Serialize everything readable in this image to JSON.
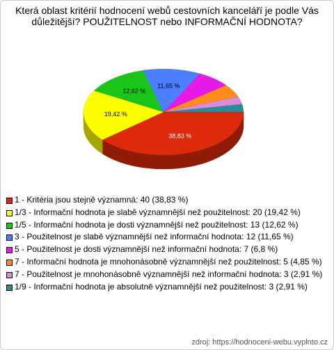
{
  "chart_data": {
    "type": "pie",
    "title": "Která oblast kritérií hodnocení webů cestovních kanceláří je podle Vás důležitější? POUŽITELNOST nebo INFORMAČNÍ HODNOTA?",
    "categories": [
      "1 - Kritéria jsou stejně významná: 40 (38,83 %)",
      "1/3 - Informační hodnota je slabě významnější než použitelnost: 20 (19,42 %)",
      "1/5 - Informační hodnota je dosti významnější než použitelnost: 13 (12,62 %)",
      "3 - Použitelnost je slabě významnější než informační hodnota: 12 (11,65 %)",
      "5 - Použitelnost je dosti významnější než informační hodnota: 7 (6,8 %)",
      "7 - Informační hodnota je mnohonásobně významnější než použitelnost: 5 (4,85 %)",
      "7 - Použitelnost je mnohonásobně významnější než informační hodnota: 3 (2,91 %)",
      "1/9 - Informační hodnota je absolutně významnější než použitelnost: 3 (2,91 %)"
    ],
    "values": [
      38.83,
      19.42,
      12.62,
      11.65,
      6.8,
      4.85,
      2.91,
      2.91
    ],
    "value_labels": [
      "38,83 %",
      "19,42 %",
      "12,62 %",
      "11,65 %",
      null,
      null,
      null,
      null
    ],
    "colors": [
      "#dd2a0a",
      "#ffff00",
      "#19c519",
      "#4c7fff",
      "#e619e6",
      "#ff8c19",
      "#d98cd9",
      "#2a8c99"
    ],
    "source": "zdroj: https://hodnoceni-webu.vyplnto.cz"
  }
}
